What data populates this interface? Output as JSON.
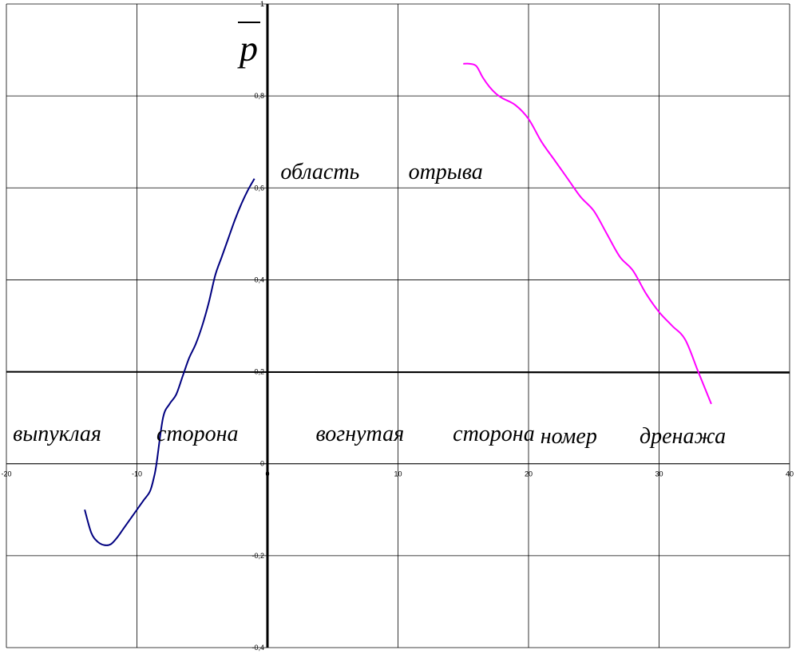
{
  "chart_data": {
    "type": "line",
    "title": "",
    "xlabel": "",
    "ylabel": "p",
    "xlim": [
      -20,
      40
    ],
    "ylim": [
      -0.4,
      1
    ],
    "x_ticks": [
      "-20",
      "-10",
      "0",
      "10",
      "20",
      "30",
      "40"
    ],
    "y_ticks": [
      "-0,4",
      "-0,2",
      "0",
      "0,2",
      "0,4",
      "0,6",
      "0,8",
      "1"
    ],
    "grid": true,
    "annotations": [
      {
        "text": "область",
        "x": 1,
        "y": 0.62
      },
      {
        "text": "отрыва",
        "x": 10.8,
        "y": 0.62
      },
      {
        "text": "выпуклая",
        "x": -19.5,
        "y": 0.05
      },
      {
        "text": "сторона",
        "x": -8.5,
        "y": 0.05
      },
      {
        "text": "вогнутая",
        "x": 3.7,
        "y": 0.05
      },
      {
        "text": "сторона",
        "x": 14.2,
        "y": 0.05
      },
      {
        "text": "номер",
        "x": 20.9,
        "y": 0.045
      },
      {
        "text": "дренажа",
        "x": 28.5,
        "y": 0.045
      }
    ],
    "reference_line": {
      "x": [
        -20,
        40
      ],
      "y": [
        0.2,
        0.198
      ],
      "color": "#000000"
    },
    "series": [
      {
        "color": "#000080",
        "x": [
          -14,
          -13.5,
          -13,
          -12.5,
          -12,
          -11.5,
          -11,
          -10,
          -9.5,
          -9,
          -8.7,
          -8.5,
          -8,
          -7.5,
          -7,
          -6.5,
          -6,
          -5.5,
          -5,
          -4.5,
          -4,
          -3.5,
          -3,
          -2.5,
          -2,
          -1.5,
          -1
        ],
        "y": [
          -0.1,
          -0.15,
          -0.17,
          -0.177,
          -0.175,
          -0.16,
          -0.14,
          -0.1,
          -0.08,
          -0.06,
          -0.03,
          0,
          0.1,
          0.13,
          0.15,
          0.19,
          0.23,
          0.26,
          0.3,
          0.35,
          0.41,
          0.45,
          0.49,
          0.53,
          0.565,
          0.595,
          0.62
        ]
      },
      {
        "color": "#ff00ff",
        "x": [
          15,
          15.5,
          16,
          16.5,
          17,
          17.5,
          18,
          19,
          20,
          21,
          22,
          23,
          24,
          25,
          26,
          27,
          28,
          29,
          30,
          31,
          32,
          33,
          34
        ],
        "y": [
          0.87,
          0.87,
          0.865,
          0.84,
          0.82,
          0.805,
          0.795,
          0.78,
          0.75,
          0.7,
          0.66,
          0.62,
          0.58,
          0.55,
          0.5,
          0.45,
          0.42,
          0.37,
          0.33,
          0.3,
          0.27,
          0.2,
          0.13
        ]
      }
    ]
  }
}
